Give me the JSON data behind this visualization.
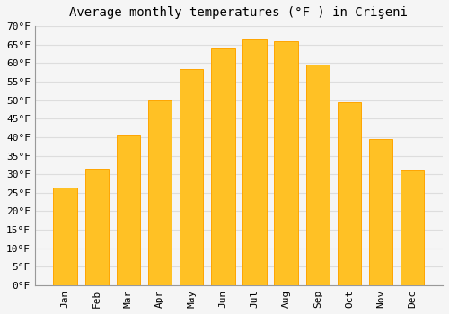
{
  "title": "Average monthly temperatures (°F ) in Crişeni",
  "months": [
    "Jan",
    "Feb",
    "Mar",
    "Apr",
    "May",
    "Jun",
    "Jul",
    "Aug",
    "Sep",
    "Oct",
    "Nov",
    "Dec"
  ],
  "values": [
    26.5,
    31.5,
    40.5,
    50.0,
    58.5,
    64.0,
    66.5,
    66.0,
    59.5,
    49.5,
    39.5,
    31.0
  ],
  "bar_color": "#FFC125",
  "bar_edge_color": "#FFA500",
  "background_color": "#F5F5F5",
  "ylim": [
    0,
    70
  ],
  "yticks": [
    0,
    5,
    10,
    15,
    20,
    25,
    30,
    35,
    40,
    45,
    50,
    55,
    60,
    65,
    70
  ],
  "tick_label_suffix": "°F",
  "grid_color": "#DDDDDD",
  "title_fontsize": 10,
  "tick_fontsize": 8,
  "font_family": "monospace"
}
